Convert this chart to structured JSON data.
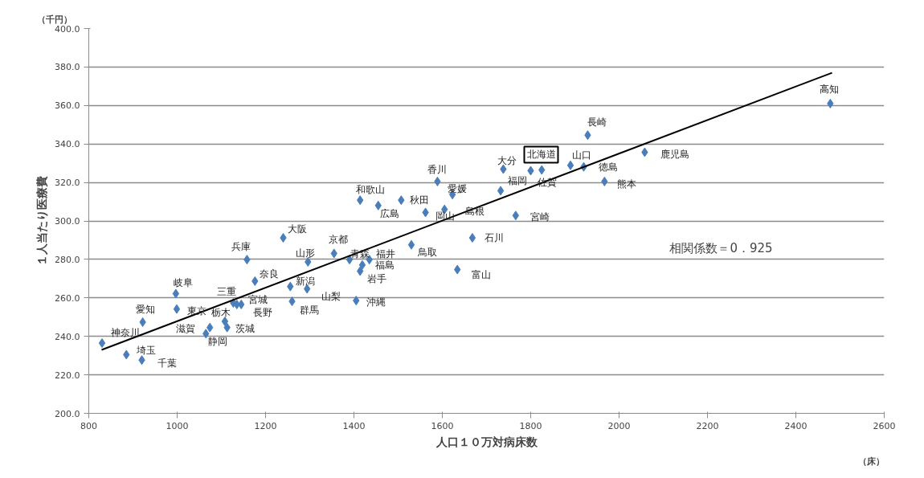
{
  "chart_data": {
    "type": "scatter",
    "xlabel": "人口１０万対病床数",
    "ylabel": "１人当たり医療費",
    "xlim": [
      800,
      2600
    ],
    "xticks": [
      800,
      1000,
      1200,
      1400,
      1600,
      1800,
      2000,
      2200,
      2400,
      2600
    ],
    "ylim": [
      200,
      400
    ],
    "yticks": [
      {
        "value": 200,
        "label": "200.0"
      },
      {
        "value": 220,
        "label": "220.0"
      },
      {
        "value": 240,
        "label": "240.0"
      },
      {
        "value": 260,
        "label": "260.0"
      },
      {
        "value": 280,
        "label": "280.0"
      },
      {
        "value": 300,
        "label": "300.0"
      },
      {
        "value": 320,
        "label": "320.0"
      },
      {
        "value": 340,
        "label": "340.0"
      },
      {
        "value": 360,
        "label": "360.0"
      },
      {
        "value": 380,
        "label": "380.0"
      },
      {
        "value": 400,
        "label": "400.0"
      }
    ],
    "grid": "y",
    "series": [
      {
        "color": "#4a7ebb",
        "marker": "diamond",
        "x": [
          830,
          885,
          920,
          922,
          997,
          999,
          1074,
          1065,
          1108,
          1113,
          1127,
          1135,
          1145,
          1158,
          1176,
          1240,
          1296,
          1256,
          1294,
          1260,
          1355,
          1390,
          1435,
          1419,
          1414,
          1405,
          1414,
          1455,
          1507,
          1530,
          1589,
          1623,
          1562,
          1605,
          1668,
          1634,
          1738,
          1732,
          1800,
          1825,
          1890,
          1920,
          1929,
          1967,
          1766,
          2058,
          2478
        ],
        "values": [
          236.5,
          230.5,
          227.7,
          247.4,
          262.2,
          254.2,
          244.6,
          241.4,
          247.8,
          244.6,
          257.4,
          256.6,
          256.6,
          279.9,
          268.7,
          291.2,
          278.7,
          265.9,
          264.7,
          258.2,
          283.1,
          279.9,
          279.9,
          277.1,
          273.9,
          258.6,
          310.8,
          308.0,
          310.8,
          287.6,
          320.5,
          313.7,
          304.4,
          306.0,
          291.2,
          274.7,
          326.9,
          315.7,
          326.1,
          326.5,
          328.9,
          328.1,
          344.6,
          320.5,
          302.8,
          335.7,
          361.0
        ]
      },
      {
        "type": "line",
        "color": "#000000",
        "marker": "none",
        "line_style": "solid",
        "x": [
          829,
          2482
        ],
        "values": [
          233,
          377
        ]
      }
    ],
    "annotations": [
      "（千円）",
      "（床）",
      "相関係数＝0．925",
      {
        "text": "神奈川",
        "x": 830,
        "y": 236.5
      },
      {
        "text": "埼玉",
        "x": 885,
        "y": 230.5
      },
      {
        "text": "千葉",
        "x": 920,
        "y": 227.7
      },
      {
        "text": "愛知",
        "x": 922,
        "y": 247.4
      },
      {
        "text": "岐阜",
        "x": 997,
        "y": 262.2
      },
      {
        "text": "東京",
        "x": 999,
        "y": 254.2
      },
      {
        "text": "滋賀",
        "x": 1074,
        "y": 244.6
      },
      {
        "text": "静岡",
        "x": 1065,
        "y": 241.4
      },
      {
        "text": "栃木",
        "x": 1108,
        "y": 247.8
      },
      {
        "text": "茨城",
        "x": 1113,
        "y": 244.6
      },
      {
        "text": "三重",
        "x": 1127,
        "y": 257.4
      },
      {
        "text": "宮城",
        "x": 1135,
        "y": 256.6
      },
      {
        "text": "長野",
        "x": 1145,
        "y": 256.6
      },
      {
        "text": "兵庫",
        "x": 1158,
        "y": 279.9
      },
      {
        "text": "奈良",
        "x": 1176,
        "y": 268.7
      },
      {
        "text": "大阪",
        "x": 1240,
        "y": 291.2
      },
      {
        "text": "山形",
        "x": 1296,
        "y": 278.7
      },
      {
        "text": "新潟",
        "x": 1256,
        "y": 265.9
      },
      {
        "text": "山梨",
        "x": 1294,
        "y": 264.7
      },
      {
        "text": "群馬",
        "x": 1260,
        "y": 258.2
      },
      {
        "text": "京都",
        "x": 1355,
        "y": 283.1
      },
      {
        "text": "青森",
        "x": 1390,
        "y": 279.9
      },
      {
        "text": "福井",
        "x": 1435,
        "y": 279.9
      },
      {
        "text": "福島",
        "x": 1419,
        "y": 277.1
      },
      {
        "text": "岩手",
        "x": 1414,
        "y": 273.9
      },
      {
        "text": "沖縄",
        "x": 1405,
        "y": 258.6
      },
      {
        "text": "和歌山",
        "x": 1414,
        "y": 310.8
      },
      {
        "text": "広島",
        "x": 1455,
        "y": 308.0
      },
      {
        "text": "秋田",
        "x": 1507,
        "y": 310.8
      },
      {
        "text": "鳥取",
        "x": 1530,
        "y": 287.6
      },
      {
        "text": "香川",
        "x": 1589,
        "y": 320.5
      },
      {
        "text": "愛媛",
        "x": 1623,
        "y": 313.7
      },
      {
        "text": "岡山",
        "x": 1562,
        "y": 304.4
      },
      {
        "text": "島根",
        "x": 1605,
        "y": 306.0
      },
      {
        "text": "石川",
        "x": 1668,
        "y": 291.2
      },
      {
        "text": "富山",
        "x": 1634,
        "y": 274.7
      },
      {
        "text": "大分",
        "x": 1738,
        "y": 326.9
      },
      {
        "text": "福岡",
        "x": 1732,
        "y": 315.7
      },
      {
        "text": "北海道",
        "x": 1800,
        "y": 326.1
      },
      {
        "text": "佐賀",
        "x": 1825,
        "y": 326.5
      },
      {
        "text": "山口",
        "x": 1890,
        "y": 328.9
      },
      {
        "text": "徳島",
        "x": 1920,
        "y": 328.1
      },
      {
        "text": "長崎",
        "x": 1929,
        "y": 344.6
      },
      {
        "text": "熊本",
        "x": 1967,
        "y": 320.5
      },
      {
        "text": "宮崎",
        "x": 1766,
        "y": 302.8
      },
      {
        "text": "鹿児島",
        "x": 2058,
        "y": 335.7
      },
      {
        "text": "高知",
        "x": 2478,
        "y": 361.0
      }
    ]
  }
}
